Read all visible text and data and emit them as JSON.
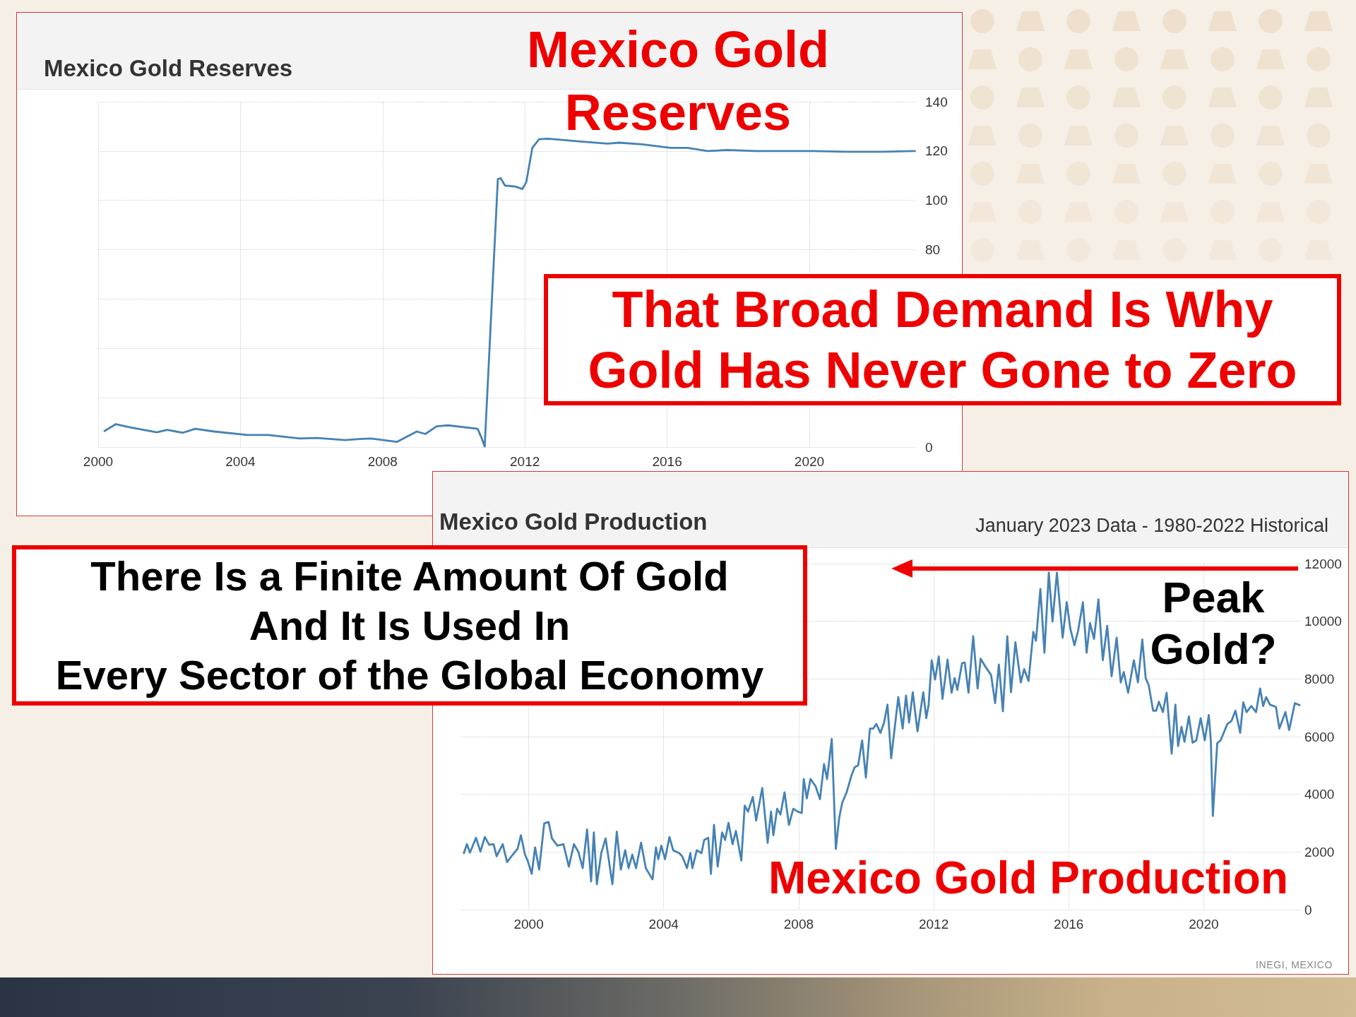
{
  "chart_data": [
    {
      "type": "line",
      "title": "Mexico Gold Reserves",
      "x": [
        2000.18,
        2000.5,
        2000.85,
        2001.65,
        2001.94,
        2002.38,
        2002.73,
        2003.26,
        2004.2,
        2004.78,
        2005.67,
        2006.15,
        2006.95,
        2007.27,
        2007.67,
        2008.4,
        2008.96,
        2009.2,
        2009.52,
        2009.84,
        2010.67,
        2010.77,
        2010.87,
        2011.24,
        2011.32,
        2011.44,
        2011.73,
        2011.93,
        2012.04,
        2012.21,
        2012.4,
        2012.65,
        2013.69,
        2014.33,
        2014.65,
        2015.3,
        2016.1,
        2016.58,
        2017.14,
        2017.7,
        2018.5,
        2019.47,
        2020.1,
        2021.07,
        2022.03,
        2022.97
      ],
      "values": [
        6.5,
        9.3,
        8.1,
        6.0,
        7.0,
        5.8,
        7.4,
        6.3,
        4.9,
        4.9,
        3.5,
        3.7,
        2.8,
        3.2,
        3.5,
        2.1,
        6.3,
        5.3,
        8.4,
        8.8,
        7.4,
        4.2,
        0.2,
        108.6,
        109,
        106,
        105.6,
        104.6,
        107.4,
        121.3,
        124.8,
        125,
        123.7,
        123,
        123.4,
        122.7,
        121.3,
        121.3,
        120,
        120.4,
        120,
        120,
        120,
        119.7,
        119.7,
        120
      ],
      "color": "#4682b4",
      "xlim": [
        2000,
        2023
      ],
      "xticks": [
        2000,
        2004,
        2008,
        2012,
        2016,
        2020
      ],
      "ylim": [
        0,
        140
      ],
      "yticks": [
        0,
        {
          "value": 20,
          "label": null
        },
        {
          "value": 40,
          "label": null
        },
        {
          "value": 60,
          "label": null
        },
        80,
        100,
        120,
        140
      ],
      "grid": true,
      "annotations": [
        "Mexico Gold\nReserves",
        "That Broad Demand Is Why\nGold Has Never Gone to Zero"
      ]
    },
    {
      "type": "line",
      "title": "Mexico Gold Production",
      "subtitle": "January 2023 Data - 1980-2022 Historical",
      "x": [
        1998.08,
        1998.17,
        1998.26,
        1998.44,
        1998.57,
        1998.7,
        1998.83,
        1998.96,
        1999.05,
        1999.23,
        1999.36,
        1999.49,
        1999.67,
        1999.77,
        1999.89,
        1999.97,
        2000.09,
        2000.19,
        2000.31,
        2000.46,
        2000.59,
        2000.69,
        2000.85,
        2001.03,
        2001.19,
        2001.34,
        2001.47,
        2001.6,
        2001.73,
        2001.85,
        2001.93,
        2002.02,
        2002.15,
        2002.28,
        2002.48,
        2002.61,
        2002.73,
        2002.86,
        2002.96,
        2003.07,
        2003.18,
        2003.33,
        2003.47,
        2003.67,
        2003.77,
        2003.84,
        2003.93,
        2004.04,
        2004.17,
        2004.28,
        2004.46,
        2004.55,
        2004.69,
        2004.79,
        2004.85,
        2004.98,
        2005.12,
        2005.2,
        2005.32,
        2005.4,
        2005.49,
        2005.6,
        2005.73,
        2005.82,
        2005.92,
        2006.04,
        2006.14,
        2006.3,
        2006.4,
        2006.5,
        2006.64,
        2006.74,
        2006.92,
        2007.08,
        2007.18,
        2007.25,
        2007.36,
        2007.46,
        2007.58,
        2007.71,
        2007.84,
        2007.97,
        2008.09,
        2008.15,
        2008.24,
        2008.35,
        2008.5,
        2008.63,
        2008.75,
        2008.84,
        2008.98,
        2009.1,
        2009.2,
        2009.29,
        2009.42,
        2009.56,
        2009.66,
        2009.76,
        2009.88,
        2009.99,
        2010.11,
        2010.21,
        2010.3,
        2010.42,
        2010.53,
        2010.63,
        2010.74,
        2010.95,
        2011.08,
        2011.18,
        2011.27,
        2011.38,
        2011.52,
        2011.69,
        2011.78,
        2011.85,
        2011.94,
        2012.04,
        2012.15,
        2012.26,
        2012.41,
        2012.53,
        2012.62,
        2012.7,
        2012.84,
        2012.92,
        2013.03,
        2013.17,
        2013.3,
        2013.39,
        2013.55,
        2013.7,
        2013.82,
        2013.93,
        2014.05,
        2014.18,
        2014.29,
        2014.42,
        2014.58,
        2014.68,
        2014.81,
        2014.95,
        2015.03,
        2015.16,
        2015.28,
        2015.41,
        2015.52,
        2015.65,
        2015.82,
        2015.94,
        2016.05,
        2016.17,
        2016.28,
        2016.42,
        2016.53,
        2016.63,
        2016.75,
        2016.88,
        2017.01,
        2017.14,
        2017.27,
        2017.42,
        2017.54,
        2017.63,
        2017.76,
        2017.93,
        2018.05,
        2018.18,
        2018.28,
        2018.37,
        2018.5,
        2018.59,
        2018.67,
        2018.79,
        2018.9,
        2019.05,
        2019.16,
        2019.24,
        2019.34,
        2019.43,
        2019.56,
        2019.67,
        2019.78,
        2019.91,
        2020.03,
        2020.15,
        2020.21,
        2020.27,
        2020.4,
        2020.5,
        2020.7,
        2020.82,
        2020.94,
        2021.08,
        2021.17,
        2021.27,
        2021.41,
        2021.55,
        2021.67,
        2021.76,
        2021.85,
        2021.96,
        2022.14,
        2022.24,
        2022.42,
        2022.53,
        2022.7,
        2022.84
      ],
      "values": [
        1960,
        2270,
        1980,
        2490,
        2010,
        2520,
        2250,
        2270,
        1850,
        2270,
        1650,
        1850,
        2110,
        2580,
        1910,
        1700,
        1240,
        2160,
        1390,
        2990,
        3040,
        2470,
        2220,
        2270,
        1490,
        2270,
        2010,
        1440,
        2780,
        980,
        2680,
        880,
        1960,
        2470,
        880,
        2700,
        1390,
        2060,
        1440,
        1910,
        1440,
        2320,
        1440,
        1050,
        2160,
        1750,
        2220,
        1750,
        2520,
        2060,
        1960,
        1850,
        1440,
        1960,
        1440,
        2060,
        1960,
        2420,
        2490,
        1240,
        2940,
        1490,
        2680,
        2420,
        3010,
        2270,
        2730,
        1700,
        3610,
        3400,
        3910,
        3090,
        4220,
        2320,
        3400,
        2580,
        3500,
        3300,
        4070,
        2940,
        3500,
        3400,
        3350,
        4530,
        3860,
        4530,
        4280,
        3830,
        5050,
        4530,
        5920,
        2110,
        3190,
        3710,
        4070,
        4640,
        4940,
        5000,
        5870,
        4580,
        6280,
        6280,
        6440,
        6130,
        6490,
        7110,
        5250,
        7370,
        6280,
        7420,
        6490,
        7540,
        6180,
        7540,
        6640,
        7110,
        8650,
        7980,
        8780,
        7310,
        8670,
        7520,
        8030,
        7620,
        8550,
        8570,
        7520,
        9480,
        7670,
        8700,
        8390,
        8140,
        7160,
        8500,
        6880,
        9480,
        7540,
        9270,
        7880,
        8340,
        7930,
        9630,
        9320,
        11120,
        8910,
        11690,
        9990,
        11690,
        9430,
        10660,
        9730,
        9170,
        9680,
        10660,
        8910,
        9940,
        9390,
        10760,
        8650,
        9840,
        8090,
        9430,
        7880,
        8240,
        7520,
        8650,
        7880,
        9370,
        8030,
        7780,
        6900,
        6900,
        7210,
        6850,
        7520,
        5410,
        7110,
        5670,
        6340,
        5820,
        6700,
        5790,
        5870,
        6640,
        5870,
        6750,
        5870,
        3250,
        5770,
        5870,
        6440,
        6540,
        6900,
        6130,
        7190,
        6850,
        7060,
        6850,
        7670,
        7060,
        7370,
        7110,
        7030,
        6280,
        6850,
        6230,
        7160,
        7090
      ],
      "color": "#4682b4",
      "xlim": [
        1998,
        2022.9
      ],
      "xticks": [
        2000,
        2004,
        2008,
        2012,
        2016,
        2020
      ],
      "ylim": [
        0,
        12000
      ],
      "yticks": [
        0,
        2000,
        4000,
        6000,
        8000,
        10000,
        12000
      ],
      "grid": true,
      "annotations": [
        "There Is a Finite Amount Of Gold\nAnd It Is Used In\nEvery Sector of the Global Economy",
        "Peak\nGold?",
        "Mexico Gold Production",
        "INEGI, MEXICO"
      ]
    }
  ]
}
